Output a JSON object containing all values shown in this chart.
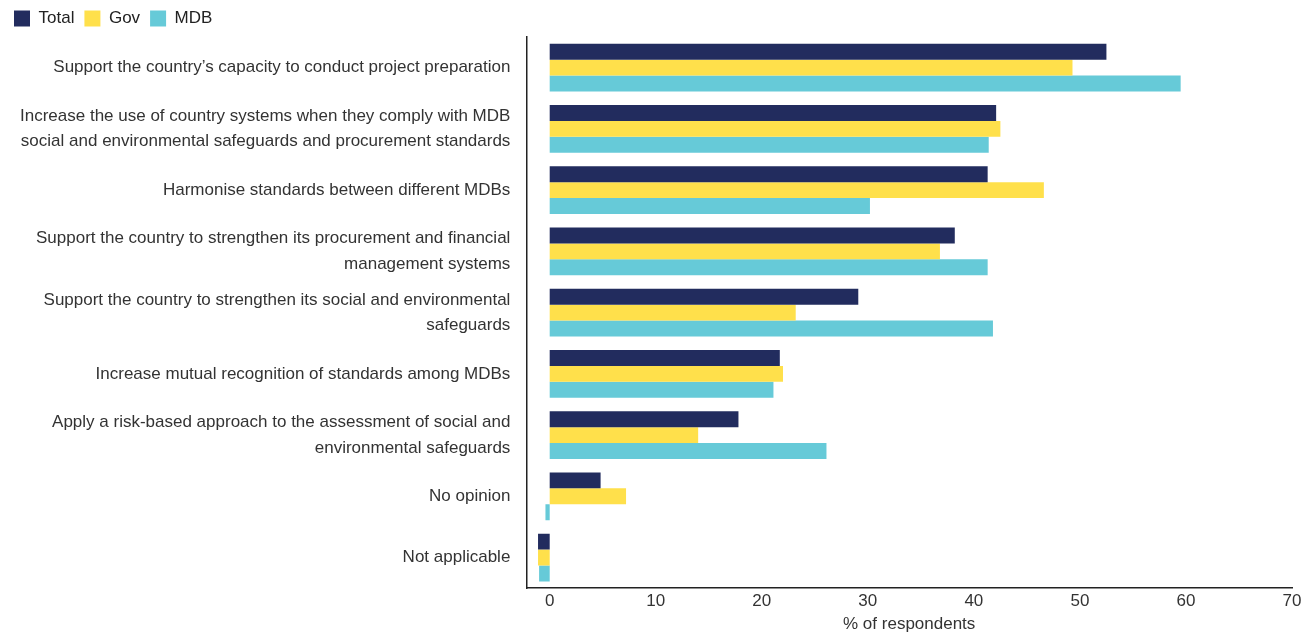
{
  "chart_data": {
    "type": "bar",
    "orientation": "horizontal",
    "xlabel": "% of respondents",
    "categories": [
      "Support the country’s capacity to conduct project preparation",
      "Increase the use of country systems when they comply with MDB social and environmental safeguards and procurement standards",
      "Harmonise standards between different MDBs",
      "Support the country to strengthen its procurement and financial management systems",
      "Support the country to strengthen its social and environmental safeguards",
      "Increase mutual recognition of standards among MDBs",
      "Apply a risk-based approach to the assessment of social and environmental safeguards",
      "No opinion",
      "Not applicable"
    ],
    "series": [
      {
        "name": "Total",
        "color": "#222c5e",
        "values": [
          52.5,
          42.1,
          41.3,
          38.2,
          29.1,
          21.7,
          17.8,
          4.8,
          -1.1
        ]
      },
      {
        "name": "Gov",
        "color": "#ffe04b",
        "values": [
          49.3,
          42.5,
          46.6,
          36.8,
          23.2,
          22.0,
          14.0,
          7.2,
          -1.1
        ]
      },
      {
        "name": "MDB",
        "color": "#66cad8",
        "values": [
          59.5,
          41.4,
          30.2,
          41.3,
          41.8,
          21.1,
          26.1,
          -0.4,
          -1.0
        ]
      }
    ],
    "xlim": [
      -2.2,
      70
    ],
    "xticks": [
      0,
      10,
      20,
      30,
      40,
      50,
      60,
      70
    ],
    "grid": false,
    "legend": "top left"
  }
}
